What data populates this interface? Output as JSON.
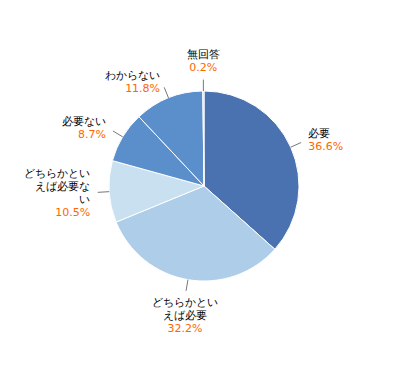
{
  "chart_data": {
    "type": "pie",
    "categories": [
      "必要",
      "どちらかとい\nえば必要",
      "どちらかとい\nえば必要な\nい",
      "必要ない",
      "わからない",
      "無回答"
    ],
    "values": [
      36.6,
      32.2,
      10.5,
      8.7,
      11.8,
      0.2
    ],
    "value_labels": [
      "36.6%",
      "32.2%",
      "10.5%",
      "8.7%",
      "11.8%",
      "0.2%"
    ],
    "colors": [
      "#4B72B0",
      "#AECDE8",
      "#C8E0F0",
      "#5B8FCC",
      "#5B8FCC",
      "#AECDE8"
    ],
    "data_labels": true
  }
}
